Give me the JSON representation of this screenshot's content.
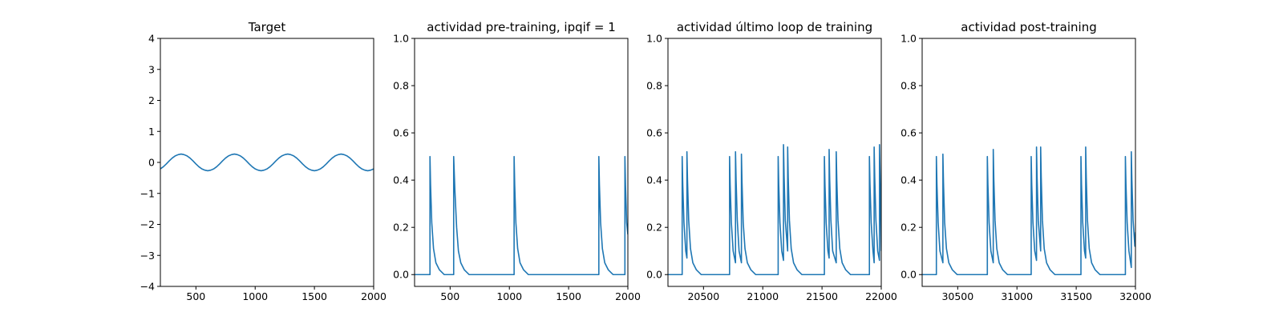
{
  "colors": {
    "series": "#1f77b4",
    "axes": "#000000",
    "background": "#ffffff"
  },
  "chart_data": [
    {
      "type": "line",
      "title": "Target",
      "xlabel": "",
      "ylabel": "",
      "xlim": [
        200,
        2000
      ],
      "ylim": [
        -4,
        4
      ],
      "xticks": [
        500,
        1000,
        1500,
        2000
      ],
      "yticks": [
        -4,
        -3,
        -2,
        -1,
        0,
        1,
        2,
        3,
        4
      ],
      "grid": false,
      "series": [
        {
          "x": [
            200,
            225,
            250,
            275,
            300,
            325,
            350,
            375,
            400,
            425,
            450,
            475,
            500,
            525,
            550,
            575,
            600,
            625,
            650,
            675,
            700,
            725,
            750,
            775,
            800,
            825,
            850,
            875,
            900,
            925,
            950,
            975,
            1000,
            1025,
            1050,
            1075,
            1100,
            1125,
            1150,
            1175,
            1200,
            1225,
            1250,
            1275,
            1300,
            1325,
            1350,
            1375,
            1400,
            1425,
            1450,
            1475,
            1500,
            1525,
            1550,
            1575,
            1600,
            1625,
            1650,
            1675,
            1700,
            1725,
            1750,
            1775,
            1800,
            1825,
            1850,
            1875,
            1900,
            1925,
            1950,
            1975,
            2000
          ],
          "y": [
            -0.21,
            -0.14,
            -0.05,
            0.05,
            0.14,
            0.21,
            0.25,
            0.27,
            0.25,
            0.21,
            0.14,
            0.05,
            -0.05,
            -0.14,
            -0.21,
            -0.25,
            -0.27,
            -0.25,
            -0.21,
            -0.14,
            -0.05,
            0.05,
            0.14,
            0.21,
            0.25,
            0.27,
            0.25,
            0.21,
            0.14,
            0.05,
            -0.05,
            -0.14,
            -0.21,
            -0.25,
            -0.27,
            -0.25,
            -0.21,
            -0.14,
            -0.05,
            0.05,
            0.14,
            0.21,
            0.25,
            0.27,
            0.25,
            0.21,
            0.14,
            0.05,
            -0.05,
            -0.14,
            -0.21,
            -0.25,
            -0.27,
            -0.25,
            -0.21,
            -0.14,
            -0.05,
            0.05,
            0.14,
            0.21,
            0.25,
            0.27,
            0.25,
            0.21,
            0.14,
            0.05,
            -0.05,
            -0.14,
            -0.21,
            -0.25,
            -0.27,
            -0.25,
            -0.21
          ]
        }
      ]
    },
    {
      "type": "line",
      "title": "actividad pre-training, ipqif = 1",
      "xlabel": "",
      "ylabel": "",
      "xlim": [
        200,
        2000
      ],
      "ylim": [
        -0.05,
        1.0
      ],
      "xticks": [
        500,
        1000,
        1500,
        2000
      ],
      "yticks": [
        0.0,
        0.2,
        0.4,
        0.6,
        0.8,
        1.0
      ],
      "ytick_format": "fixed1",
      "grid": false,
      "series": [
        {
          "x": [
            200,
            330,
            330,
            335,
            345,
            360,
            380,
            410,
            450,
            530,
            530,
            540,
            555,
            570,
            590,
            620,
            660,
            1040,
            1040,
            1045,
            1055,
            1070,
            1090,
            1120,
            1160,
            1755,
            1755,
            1760,
            1770,
            1785,
            1805,
            1835,
            1875,
            1975,
            1975,
            1980,
            1990,
            2000
          ],
          "y": [
            0,
            0,
            0.5,
            0.38,
            0.22,
            0.11,
            0.05,
            0.02,
            0,
            0,
            0.5,
            0.36,
            0.2,
            0.1,
            0.05,
            0.02,
            0,
            0,
            0.5,
            0.38,
            0.22,
            0.11,
            0.05,
            0.02,
            0,
            0,
            0.5,
            0.38,
            0.22,
            0.11,
            0.05,
            0.02,
            0,
            0,
            0.5,
            0.38,
            0.22,
            0.17
          ]
        }
      ]
    },
    {
      "type": "line",
      "title": "actividad último loop de training",
      "xlabel": "",
      "ylabel": "",
      "xlim": [
        20200,
        22000
      ],
      "ylim": [
        -0.05,
        1.0
      ],
      "xticks": [
        20500,
        21000,
        21500,
        22000
      ],
      "yticks": [
        0.0,
        0.2,
        0.4,
        0.6,
        0.8,
        1.0
      ],
      "ytick_format": "fixed1",
      "grid": false,
      "series": [
        {
          "x": [
            20200,
            20320,
            20320,
            20325,
            20335,
            20350,
            20360,
            20360,
            20365,
            20375,
            20390,
            20410,
            20440,
            20480,
            20720,
            20720,
            20725,
            20735,
            20750,
            20770,
            20770,
            20775,
            20785,
            20800,
            20820,
            20820,
            20825,
            20835,
            20850,
            20870,
            20900,
            20940,
            21130,
            21130,
            21135,
            21145,
            21160,
            21175,
            21175,
            21180,
            21190,
            21210,
            21210,
            21215,
            21225,
            21240,
            21260,
            21290,
            21330,
            21520,
            21520,
            21525,
            21535,
            21550,
            21560,
            21560,
            21565,
            21575,
            21590,
            21620,
            21620,
            21625,
            21635,
            21650,
            21670,
            21700,
            21740,
            21900,
            21900,
            21905,
            21915,
            21930,
            21940,
            21940,
            21945,
            21955,
            21970,
            21985,
            21985,
            21990,
            22000
          ],
          "y": [
            0,
            0,
            0.5,
            0.38,
            0.22,
            0.1,
            0.07,
            0.52,
            0.4,
            0.23,
            0.11,
            0.05,
            0.02,
            0,
            0,
            0.5,
            0.38,
            0.22,
            0.1,
            0.05,
            0.52,
            0.4,
            0.23,
            0.1,
            0.05,
            0.51,
            0.39,
            0.22,
            0.11,
            0.05,
            0.02,
            0,
            0,
            0.5,
            0.38,
            0.22,
            0.1,
            0.06,
            0.55,
            0.42,
            0.23,
            0.1,
            0.54,
            0.41,
            0.23,
            0.11,
            0.05,
            0.02,
            0,
            0,
            0.5,
            0.38,
            0.22,
            0.1,
            0.07,
            0.53,
            0.4,
            0.23,
            0.1,
            0.05,
            0.52,
            0.4,
            0.23,
            0.11,
            0.05,
            0.02,
            0,
            0,
            0.5,
            0.38,
            0.22,
            0.1,
            0.05,
            0.54,
            0.41,
            0.23,
            0.1,
            0.06,
            0.55,
            0.42,
            0.1
          ]
        }
      ]
    },
    {
      "type": "line",
      "title": "actividad post-training",
      "xlabel": "",
      "ylabel": "",
      "xlim": [
        30200,
        32000
      ],
      "ylim": [
        -0.05,
        1.0
      ],
      "xticks": [
        30500,
        31000,
        31500,
        32000
      ],
      "yticks": [
        0.0,
        0.2,
        0.4,
        0.6,
        0.8,
        1.0
      ],
      "ytick_format": "fixed1",
      "grid": false,
      "series": [
        {
          "x": [
            30200,
            30320,
            30320,
            30325,
            30335,
            30350,
            30375,
            30375,
            30380,
            30390,
            30405,
            30425,
            30455,
            30495,
            30750,
            30750,
            30755,
            30765,
            30780,
            30800,
            30800,
            30805,
            30815,
            30830,
            30850,
            30880,
            30920,
            31120,
            31120,
            31125,
            31135,
            31150,
            31165,
            31165,
            31170,
            31180,
            31200,
            31200,
            31205,
            31215,
            31230,
            31250,
            31280,
            31320,
            31540,
            31540,
            31545,
            31555,
            31570,
            31580,
            31580,
            31585,
            31595,
            31610,
            31630,
            31660,
            31700,
            31915,
            31915,
            31920,
            31930,
            31945,
            31965,
            31965,
            31970,
            31980,
            31995,
            32000
          ],
          "y": [
            0,
            0,
            0.5,
            0.38,
            0.22,
            0.1,
            0.05,
            0.51,
            0.39,
            0.22,
            0.11,
            0.05,
            0.02,
            0,
            0,
            0.5,
            0.38,
            0.22,
            0.1,
            0.05,
            0.53,
            0.4,
            0.23,
            0.11,
            0.05,
            0.02,
            0,
            0,
            0.5,
            0.38,
            0.22,
            0.1,
            0.06,
            0.54,
            0.41,
            0.23,
            0.1,
            0.54,
            0.41,
            0.23,
            0.11,
            0.05,
            0.02,
            0,
            0,
            0.5,
            0.38,
            0.22,
            0.1,
            0.07,
            0.54,
            0.41,
            0.23,
            0.11,
            0.05,
            0.02,
            0,
            0,
            0.5,
            0.38,
            0.22,
            0.1,
            0.03,
            0.52,
            0.4,
            0.23,
            0.12,
            0.18
          ]
        }
      ]
    }
  ]
}
